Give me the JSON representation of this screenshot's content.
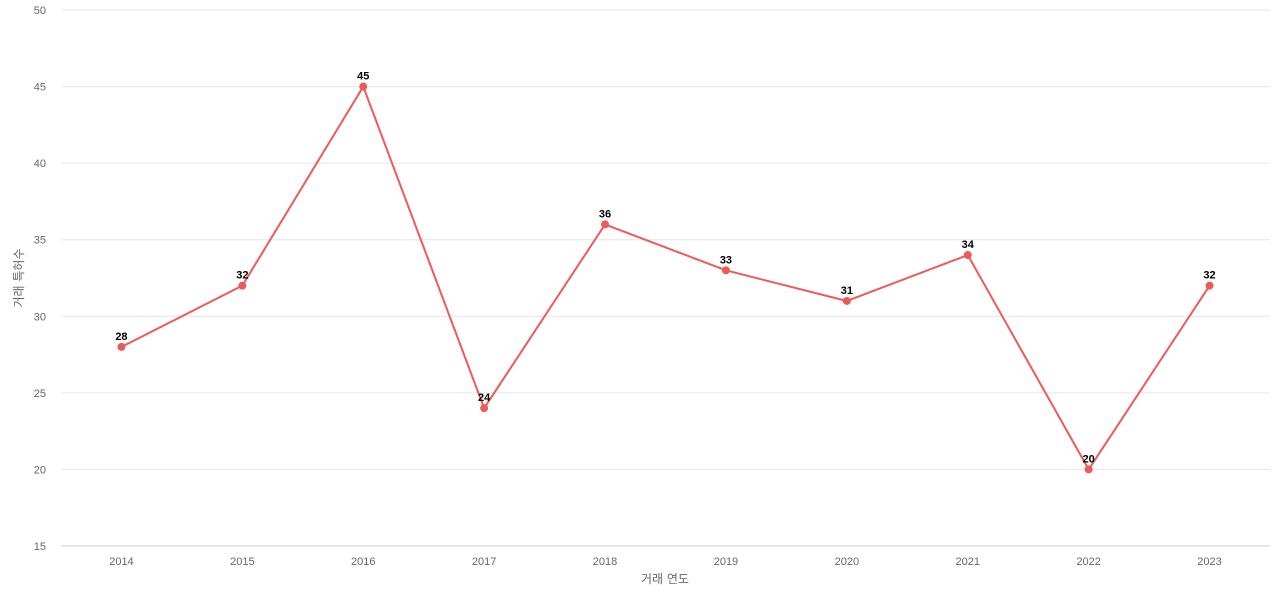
{
  "chart_data": {
    "type": "line",
    "title": "",
    "xlabel": "거래 연도",
    "ylabel": "거래 특허수",
    "x": [
      "2014",
      "2015",
      "2016",
      "2017",
      "2018",
      "2019",
      "2020",
      "2021",
      "2022",
      "2023"
    ],
    "series": [
      {
        "values": [
          28,
          32,
          45,
          24,
          36,
          33,
          31,
          34,
          20,
          32
        ],
        "color": "#ee5a5a"
      }
    ],
    "ylim": [
      15,
      50
    ],
    "yticks": [
      15,
      20,
      25,
      30,
      35,
      40,
      45,
      50
    ],
    "grid": true,
    "legend": "none",
    "data_labels": true
  }
}
